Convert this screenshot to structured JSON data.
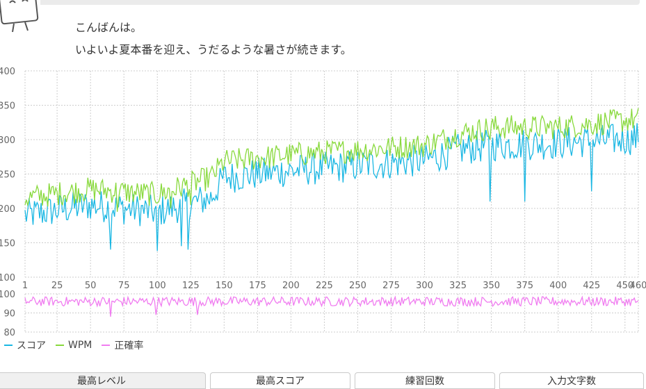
{
  "greeting": {
    "line1": "こんばんは。",
    "line2": "いよいよ夏本番を迎え、うだるような暑さが続きます。"
  },
  "icons": {
    "mascot": "mascot-character-icon"
  },
  "colors": {
    "score": "#1ab7e3",
    "wpm": "#88d93c",
    "accuracy": "#f07cf0",
    "grid": "#cccccc",
    "tab_border": "#c9c9c9"
  },
  "legend": {
    "score": "スコア",
    "wpm": "WPM",
    "accuracy": "正確率"
  },
  "tabs": [
    {
      "label": "最高レベル",
      "active": true
    },
    {
      "label": "最高スコア",
      "active": false
    },
    {
      "label": "練習回数",
      "active": false
    },
    {
      "label": "入力文字数",
      "active": false
    }
  ],
  "chart_data": {
    "type": "line",
    "x_range": [
      1,
      460
    ],
    "x_ticks": [
      1,
      25,
      50,
      75,
      100,
      125,
      150,
      175,
      200,
      225,
      250,
      275,
      300,
      325,
      350,
      375,
      400,
      425,
      450,
      460
    ],
    "x_tick_labels": [
      "1",
      "25",
      "50",
      "75",
      "100",
      "125",
      "150",
      "175",
      "200",
      "225",
      "250",
      "275",
      "300",
      "325",
      "350",
      "375",
      "400",
      "425",
      "450",
      "460"
    ],
    "panels": [
      {
        "name": "score-wpm",
        "ylim": [
          100,
          400
        ],
        "y_ticks": [
          100,
          150,
          200,
          250,
          300,
          350,
          400
        ],
        "series": [
          {
            "name": "スコア",
            "color": "#1ab7e3",
            "trend": [
              [
                1,
                190
              ],
              [
                50,
                205
              ],
              [
                100,
                195
              ],
              [
                140,
                215
              ],
              [
                150,
                245
              ],
              [
                200,
                255
              ],
              [
                250,
                262
              ],
              [
                300,
                270
              ],
              [
                325,
                285
              ],
              [
                350,
                292
              ],
              [
                400,
                295
              ],
              [
                460,
                302
              ]
            ],
            "noise": 24,
            "dips": [
              [
                65,
                140
              ],
              [
                100,
                138
              ],
              [
                118,
                145
              ],
              [
                123,
                140
              ],
              [
                349,
                210
              ],
              [
                375,
                210
              ],
              [
                425,
                225
              ]
            ]
          },
          {
            "name": "WPM",
            "color": "#88d93c",
            "trend": [
              [
                1,
                215
              ],
              [
                50,
                228
              ],
              [
                100,
                220
              ],
              [
                140,
                245
              ],
              [
                150,
                268
              ],
              [
                200,
                278
              ],
              [
                250,
                285
              ],
              [
                300,
                292
              ],
              [
                325,
                308
              ],
              [
                350,
                318
              ],
              [
                400,
                318
              ],
              [
                460,
                330
              ]
            ],
            "noise": 18,
            "dips": [
              [
                70,
                195
              ],
              [
                110,
                200
              ],
              [
                125,
                205
              ],
              [
                349,
                300
              ]
            ]
          }
        ]
      },
      {
        "name": "accuracy",
        "ylim": [
          80,
          100
        ],
        "y_ticks": [
          80,
          90,
          100
        ],
        "series": [
          {
            "name": "正確率",
            "color": "#f07cf0",
            "trend": [
              [
                1,
                96
              ],
              [
                460,
                96
              ]
            ],
            "noise": 2.5,
            "dips": [
              [
                65,
                88
              ],
              [
                99,
                89
              ],
              [
                130,
                89
              ]
            ]
          }
        ]
      }
    ],
    "grid": true,
    "legend_position": "bottom-left"
  }
}
